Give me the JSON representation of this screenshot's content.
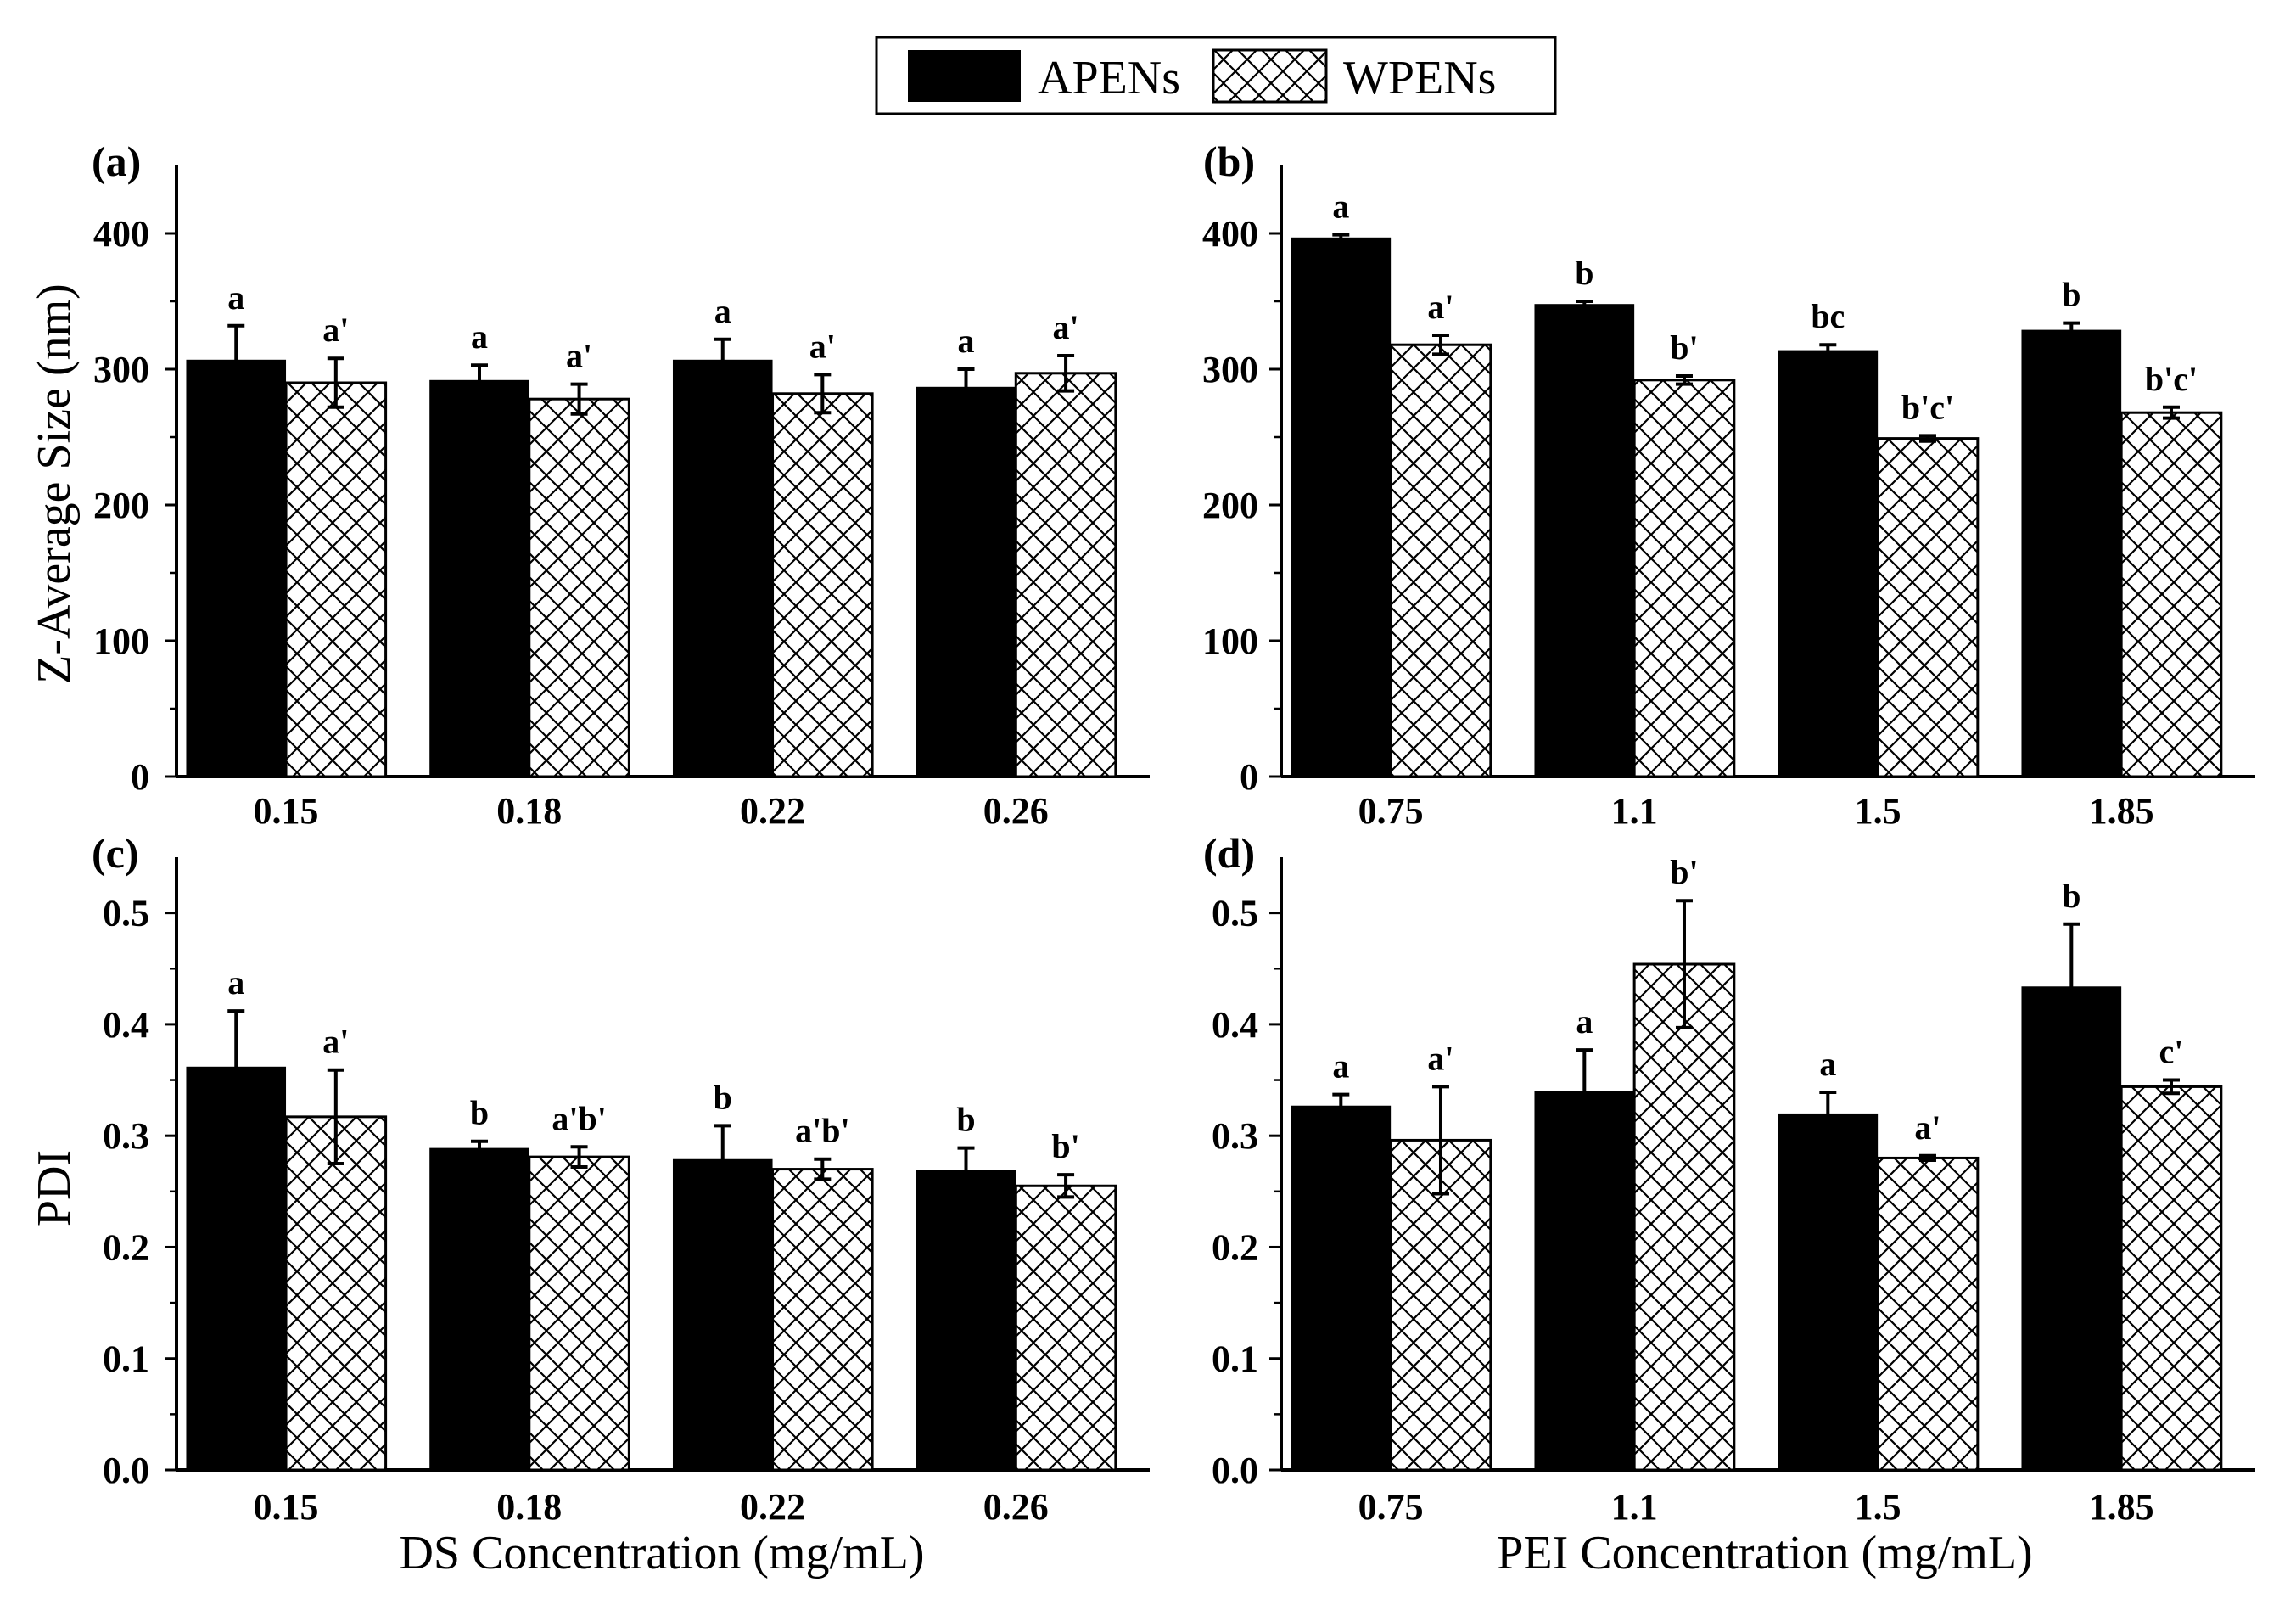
{
  "legend": {
    "items": [
      {
        "name": "APENs",
        "style": "solid"
      },
      {
        "name": "WPENs",
        "style": "crosshatch"
      }
    ]
  },
  "colors": {
    "apens_fill": "#000000",
    "wpens_fill": "#ffffff",
    "hatch": "#000000",
    "axis": "#000000"
  },
  "chart_data": [
    {
      "type": "bar",
      "panel": "(a)",
      "categories": [
        "0.15",
        "0.18",
        "0.22",
        "0.26"
      ],
      "ylabel": "Z-Average Size (nm)",
      "xlabel": "",
      "ylim": [
        0,
        450
      ],
      "yticks": [
        "0",
        "100",
        "200",
        "300",
        "400"
      ],
      "series": [
        {
          "name": "APENs",
          "values": [
            307,
            292,
            307,
            287
          ],
          "errors": [
            25,
            11,
            15,
            13
          ],
          "letters": [
            "a",
            "a",
            "a",
            "a"
          ]
        },
        {
          "name": "WPENs",
          "values": [
            290,
            278,
            282,
            297
          ],
          "errors": [
            18,
            11,
            14,
            13
          ],
          "letters": [
            "a'",
            "a'",
            "a'",
            "a'"
          ]
        }
      ]
    },
    {
      "type": "bar",
      "panel": "(b)",
      "categories": [
        "0.75",
        "1.1",
        "1.5",
        "1.85"
      ],
      "ylabel": "",
      "xlabel": "",
      "ylim": [
        0,
        450
      ],
      "yticks": [
        "0",
        "100",
        "200",
        "300",
        "400"
      ],
      "series": [
        {
          "name": "APENs",
          "values": [
            397,
            348,
            314,
            329
          ],
          "errors": [
            2,
            2,
            4,
            5
          ],
          "letters": [
            "a",
            "b",
            "bc",
            "b"
          ]
        },
        {
          "name": "WPENs",
          "values": [
            318,
            292,
            249,
            268
          ],
          "errors": [
            7,
            3,
            2,
            4
          ],
          "letters": [
            "a'",
            "b'",
            "b'c'",
            "b'c'"
          ]
        }
      ]
    },
    {
      "type": "bar",
      "panel": "(c)",
      "categories": [
        "0.15",
        "0.18",
        "0.22",
        "0.26"
      ],
      "ylabel": "PDI",
      "xlabel": "DS Concentration (mg/mL)",
      "ylim": [
        0,
        0.55
      ],
      "yticks": [
        "0.0",
        "0.1",
        "0.2",
        "0.3",
        "0.4",
        "0.5"
      ],
      "series": [
        {
          "name": "APENs",
          "values": [
            0.362,
            0.289,
            0.279,
            0.269
          ],
          "errors": [
            0.05,
            0.006,
            0.03,
            0.02
          ],
          "letters": [
            "a",
            "b",
            "b",
            "b"
          ]
        },
        {
          "name": "WPENs",
          "values": [
            0.317,
            0.281,
            0.27,
            0.255
          ],
          "errors": [
            0.042,
            0.009,
            0.009,
            0.01
          ],
          "letters": [
            "a'",
            "a'b'",
            "a'b'",
            "b'"
          ]
        }
      ]
    },
    {
      "type": "bar",
      "panel": "(d)",
      "categories": [
        "0.75",
        "1.1",
        "1.5",
        "1.85"
      ],
      "ylabel": "",
      "xlabel": "PEI Concentration (mg/mL)",
      "ylim": [
        0,
        0.55
      ],
      "yticks": [
        "0.0",
        "0.1",
        "0.2",
        "0.3",
        "0.4",
        "0.5"
      ],
      "series": [
        {
          "name": "APENs",
          "values": [
            0.327,
            0.34,
            0.32,
            0.434
          ],
          "errors": [
            0.01,
            0.037,
            0.019,
            0.056
          ],
          "letters": [
            "a",
            "a",
            "a",
            "b"
          ]
        },
        {
          "name": "WPENs",
          "values": [
            0.296,
            0.454,
            0.28,
            0.344
          ],
          "errors": [
            0.048,
            0.057,
            0.002,
            0.006
          ],
          "letters": [
            "a'",
            "b'",
            "a'",
            "c'"
          ]
        }
      ]
    }
  ]
}
